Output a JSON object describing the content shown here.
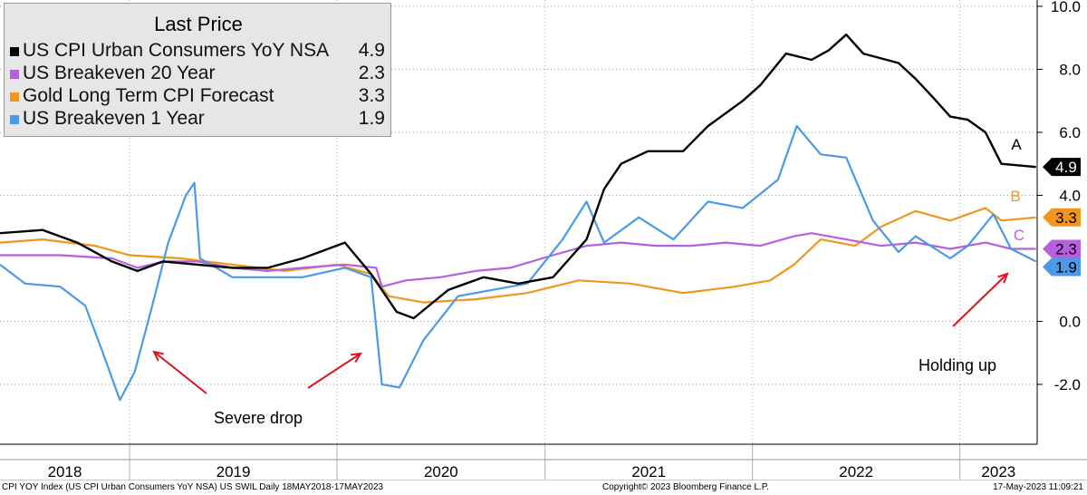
{
  "chart_data": {
    "type": "line",
    "legend": {
      "title": "Last Price",
      "placement": "top-left"
    },
    "x_axis": {
      "type": "date",
      "range": [
        "2018-05-18",
        "2023-05-17"
      ],
      "tick_labels": [
        "2018",
        "2019",
        "2020",
        "2021",
        "2022",
        "2023"
      ]
    },
    "y_axis": {
      "position": "right",
      "ylim": [
        -3.9,
        10.2
      ],
      "tick_labels": [
        "10.0",
        "8.0",
        "6.0",
        "4.0",
        "0.0",
        "-2.0"
      ],
      "ticks": [
        10,
        8,
        6,
        4,
        0,
        -2
      ]
    },
    "grid": "horizontal dotted and yearly vertical dotted",
    "series": [
      {
        "name": "US CPI Urban Consumers YoY NSA",
        "last": "4.9",
        "color": "#000000",
        "tag": "A",
        "points": [
          [
            "2018-05-18",
            2.8
          ],
          [
            "2018-08-01",
            2.9
          ],
          [
            "2018-10-01",
            2.5
          ],
          [
            "2018-12-01",
            1.9
          ],
          [
            "2019-01-15",
            1.6
          ],
          [
            "2019-03-01",
            1.9
          ],
          [
            "2019-05-01",
            1.8
          ],
          [
            "2019-07-01",
            1.7
          ],
          [
            "2019-09-01",
            1.7
          ],
          [
            "2019-11-01",
            2.0
          ],
          [
            "2020-01-15",
            2.5
          ],
          [
            "2020-03-01",
            1.5
          ],
          [
            "2020-04-15",
            0.3
          ],
          [
            "2020-05-15",
            0.1
          ],
          [
            "2020-07-15",
            1.0
          ],
          [
            "2020-09-15",
            1.4
          ],
          [
            "2020-11-15",
            1.2
          ],
          [
            "2021-01-15",
            1.4
          ],
          [
            "2021-03-15",
            2.6
          ],
          [
            "2021-04-15",
            4.2
          ],
          [
            "2021-05-15",
            5.0
          ],
          [
            "2021-07-01",
            5.4
          ],
          [
            "2021-09-01",
            5.4
          ],
          [
            "2021-10-15",
            6.2
          ],
          [
            "2021-12-15",
            7.0
          ],
          [
            "2022-01-15",
            7.5
          ],
          [
            "2022-03-01",
            8.5
          ],
          [
            "2022-04-15",
            8.3
          ],
          [
            "2022-05-15",
            8.6
          ],
          [
            "2022-06-15",
            9.1
          ],
          [
            "2022-07-15",
            8.5
          ],
          [
            "2022-09-15",
            8.2
          ],
          [
            "2022-10-15",
            7.7
          ],
          [
            "2022-11-15",
            7.1
          ],
          [
            "2022-12-15",
            6.5
          ],
          [
            "2023-01-15",
            6.4
          ],
          [
            "2023-02-15",
            6.0
          ],
          [
            "2023-03-15",
            5.0
          ],
          [
            "2023-05-15",
            4.9
          ]
        ]
      },
      {
        "name": "US Breakeven 20 Year",
        "last": "2.3",
        "color": "#b660e0",
        "tag": "C",
        "points": [
          [
            "2018-05-18",
            2.1
          ],
          [
            "2018-09-01",
            2.1
          ],
          [
            "2018-12-01",
            2.0
          ],
          [
            "2019-01-15",
            1.7
          ],
          [
            "2019-03-01",
            1.9
          ],
          [
            "2019-05-01",
            1.9
          ],
          [
            "2019-07-01",
            1.7
          ],
          [
            "2019-09-01",
            1.6
          ],
          [
            "2019-11-01",
            1.7
          ],
          [
            "2020-01-15",
            1.8
          ],
          [
            "2020-03-10",
            1.7
          ],
          [
            "2020-03-20",
            1.1
          ],
          [
            "2020-05-01",
            1.3
          ],
          [
            "2020-07-01",
            1.4
          ],
          [
            "2020-09-01",
            1.6
          ],
          [
            "2020-11-01",
            1.7
          ],
          [
            "2021-01-15",
            2.1
          ],
          [
            "2021-03-15",
            2.4
          ],
          [
            "2021-05-15",
            2.5
          ],
          [
            "2021-07-15",
            2.4
          ],
          [
            "2021-09-15",
            2.4
          ],
          [
            "2021-11-15",
            2.5
          ],
          [
            "2022-01-15",
            2.4
          ],
          [
            "2022-03-15",
            2.7
          ],
          [
            "2022-04-15",
            2.8
          ],
          [
            "2022-06-15",
            2.6
          ],
          [
            "2022-08-15",
            2.4
          ],
          [
            "2022-10-15",
            2.5
          ],
          [
            "2022-12-15",
            2.3
          ],
          [
            "2023-02-15",
            2.5
          ],
          [
            "2023-04-01",
            2.3
          ],
          [
            "2023-05-15",
            2.3
          ]
        ]
      },
      {
        "name": "Gold Long Term CPI Forecast",
        "last": "3.3",
        "color": "#f0961e",
        "tag": "B",
        "points": [
          [
            "2018-05-18",
            2.5
          ],
          [
            "2018-08-01",
            2.6
          ],
          [
            "2018-11-01",
            2.4
          ],
          [
            "2019-01-01",
            2.1
          ],
          [
            "2019-04-01",
            2.0
          ],
          [
            "2019-07-01",
            1.8
          ],
          [
            "2019-10-01",
            1.6
          ],
          [
            "2020-01-01",
            1.8
          ],
          [
            "2020-03-01",
            1.5
          ],
          [
            "2020-04-01",
            0.8
          ],
          [
            "2020-06-01",
            0.6
          ],
          [
            "2020-09-01",
            0.7
          ],
          [
            "2020-12-01",
            0.9
          ],
          [
            "2021-03-01",
            1.3
          ],
          [
            "2021-06-01",
            1.2
          ],
          [
            "2021-09-01",
            0.9
          ],
          [
            "2021-12-01",
            1.1
          ],
          [
            "2022-02-01",
            1.3
          ],
          [
            "2022-03-15",
            1.8
          ],
          [
            "2022-05-01",
            2.6
          ],
          [
            "2022-07-01",
            2.4
          ],
          [
            "2022-08-15",
            3.0
          ],
          [
            "2022-10-15",
            3.5
          ],
          [
            "2022-12-15",
            3.2
          ],
          [
            "2023-02-15",
            3.6
          ],
          [
            "2023-03-15",
            3.2
          ],
          [
            "2023-05-15",
            3.3
          ]
        ]
      },
      {
        "name": "US Breakeven 1 Year",
        "last": "1.9",
        "color": "#4a9ae8",
        "tag": "",
        "points": [
          [
            "2018-05-18",
            1.8
          ],
          [
            "2018-07-01",
            1.2
          ],
          [
            "2018-09-01",
            1.1
          ],
          [
            "2018-10-15",
            0.5
          ],
          [
            "2018-11-15",
            -1.0
          ],
          [
            "2018-12-15",
            -2.5
          ],
          [
            "2019-01-10",
            -1.6
          ],
          [
            "2019-02-10",
            0.5
          ],
          [
            "2019-03-10",
            2.5
          ],
          [
            "2019-04-10",
            4.0
          ],
          [
            "2019-04-25",
            4.4
          ],
          [
            "2019-05-05",
            2.0
          ],
          [
            "2019-07-01",
            1.4
          ],
          [
            "2019-09-01",
            1.4
          ],
          [
            "2019-11-01",
            1.4
          ],
          [
            "2020-01-15",
            1.7
          ],
          [
            "2020-03-01",
            1.4
          ],
          [
            "2020-03-20",
            -2.0
          ],
          [
            "2020-04-20",
            -2.1
          ],
          [
            "2020-06-01",
            -0.6
          ],
          [
            "2020-08-01",
            0.8
          ],
          [
            "2020-10-01",
            1.0
          ],
          [
            "2020-12-01",
            1.2
          ],
          [
            "2021-02-01",
            2.6
          ],
          [
            "2021-03-15",
            3.8
          ],
          [
            "2021-04-15",
            2.5
          ],
          [
            "2021-06-15",
            3.3
          ],
          [
            "2021-08-15",
            2.6
          ],
          [
            "2021-10-15",
            3.8
          ],
          [
            "2021-12-15",
            3.6
          ],
          [
            "2022-02-15",
            4.5
          ],
          [
            "2022-03-20",
            6.2
          ],
          [
            "2022-05-01",
            5.3
          ],
          [
            "2022-06-15",
            5.2
          ],
          [
            "2022-08-01",
            3.2
          ],
          [
            "2022-09-15",
            2.2
          ],
          [
            "2022-10-15",
            2.7
          ],
          [
            "2022-12-15",
            2.0
          ],
          [
            "2023-01-15",
            2.4
          ],
          [
            "2023-03-01",
            3.4
          ],
          [
            "2023-04-01",
            2.3
          ],
          [
            "2023-05-15",
            1.9
          ]
        ]
      }
    ],
    "annotations": [
      {
        "text": "Severe drop",
        "color": "#000000"
      },
      {
        "text": "Holding up",
        "color": "#000000"
      }
    ]
  },
  "footer": {
    "left": "CPI YOY Index (US CPI Urban Consumers YoY NSA) US SWIL  Daily 18MAY2018-17MAY2023",
    "center": "Copyright© 2023 Bloomberg Finance L.P.",
    "right": "17-May-2023 11:09:21"
  }
}
